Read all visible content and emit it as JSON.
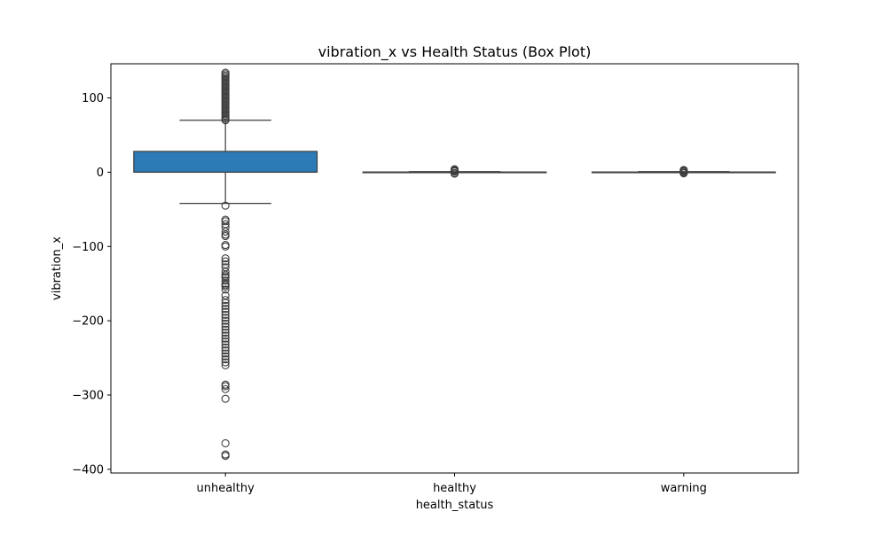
{
  "chart_data": {
    "type": "box",
    "title": "vibration_x vs Health Status (Box Plot)",
    "xlabel": "health_status",
    "ylabel": "vibration_x",
    "ylim": [
      -405,
      146
    ],
    "yticks": [
      100,
      0,
      -100,
      -200,
      -300,
      -400
    ],
    "ytick_labels": [
      "100",
      "0",
      "−100",
      "−200",
      "−300",
      "−400"
    ],
    "grid": false,
    "box_color": "#2c7bb6",
    "line_color": "#3d3d3d",
    "categories": [
      "unhealthy",
      "healthy",
      "warning"
    ],
    "boxes": [
      {
        "category": "unhealthy",
        "whisker_low": -42,
        "q1": 0,
        "median": 0,
        "q3": 28,
        "whisker_high": 70,
        "outliers": [
          70,
          72,
          74,
          76,
          78,
          80,
          82,
          84,
          86,
          88,
          90,
          92,
          94,
          96,
          98,
          100,
          102,
          104,
          106,
          108,
          110,
          112,
          114,
          116,
          118,
          120,
          122,
          124,
          126,
          128,
          130,
          132,
          134,
          -45,
          -64,
          -66,
          -70,
          -74,
          -80,
          -84,
          -86,
          -98,
          -100,
          -116,
          -120,
          -124,
          -128,
          -134,
          -138,
          -140,
          -142,
          -146,
          -150,
          -152,
          -154,
          -158,
          -166,
          -172,
          -176,
          -180,
          -184,
          -188,
          -192,
          -196,
          -200,
          -204,
          -208,
          -212,
          -216,
          -220,
          -224,
          -228,
          -232,
          -236,
          -240,
          -244,
          -248,
          -252,
          -256,
          -260,
          -286,
          -288,
          -292,
          -305,
          -365,
          -380,
          -382
        ]
      },
      {
        "category": "healthy",
        "whisker_low": 0,
        "q1": 0,
        "median": 0,
        "q3": 0.3,
        "whisker_high": 0.8,
        "outliers": [
          -2,
          -1,
          1,
          2,
          3,
          4
        ]
      },
      {
        "category": "warning",
        "whisker_low": 0,
        "q1": 0,
        "median": 0,
        "q3": 0.3,
        "whisker_high": 0.8,
        "outliers": [
          -1.5,
          -0.5,
          1,
          2,
          3
        ]
      }
    ]
  }
}
